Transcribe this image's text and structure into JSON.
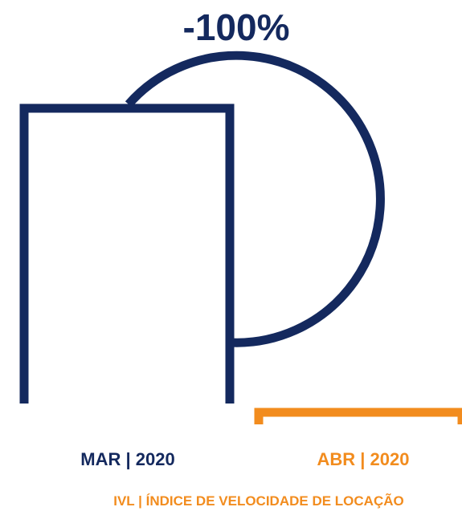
{
  "chart_data": {
    "type": "bar",
    "title": "",
    "change_label": "-100%",
    "categories": [
      "MAR | 2020",
      "ABR | 2020"
    ],
    "values": [
      100,
      0
    ],
    "ylim": [
      0,
      100
    ],
    "caption": "IVL | ÍNDICE DE VELOCIDADE DE LOCAÇÃO",
    "colors": {
      "mar": "#14295e",
      "abr": "#f28c1e",
      "arc": "#14295e"
    }
  }
}
